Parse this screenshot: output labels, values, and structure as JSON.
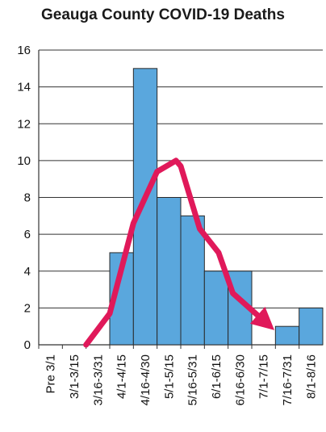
{
  "chart_data": {
    "type": "bar",
    "title": "Geauga County COVID-19 Deaths",
    "categories": [
      "Pre 3/1",
      "3/1-3/15",
      "3/16-3/31",
      "4/1-4/15",
      "4/16-4/30",
      "5/1-5/15",
      "5/16-5/31",
      "6/1-6/15",
      "6/16-6/30",
      "7/1-7/15",
      "7/16-7/31",
      "8/1-8/16"
    ],
    "values": [
      0,
      0,
      0,
      5,
      15,
      8,
      7,
      4,
      4,
      0,
      1,
      2
    ],
    "trend": {
      "type": "line",
      "x": [
        2.0,
        3.0,
        4.0,
        5.0,
        5.8,
        6.0,
        6.8,
        7.6,
        8.2,
        9.6
      ],
      "values": [
        0,
        1.7,
        6.6,
        9.4,
        10.0,
        9.7,
        6.3,
        5.0,
        2.8,
        1.2
      ]
    },
    "colors": {
      "bar": "#5aa7dd",
      "bar_edge": "#2a2a2a",
      "trend": "#e0195a"
    },
    "ylim": [
      0,
      16
    ],
    "yticks": [
      0,
      2,
      4,
      6,
      8,
      10,
      12,
      14,
      16
    ],
    "xlabel": "",
    "ylabel": "",
    "grid": true
  }
}
